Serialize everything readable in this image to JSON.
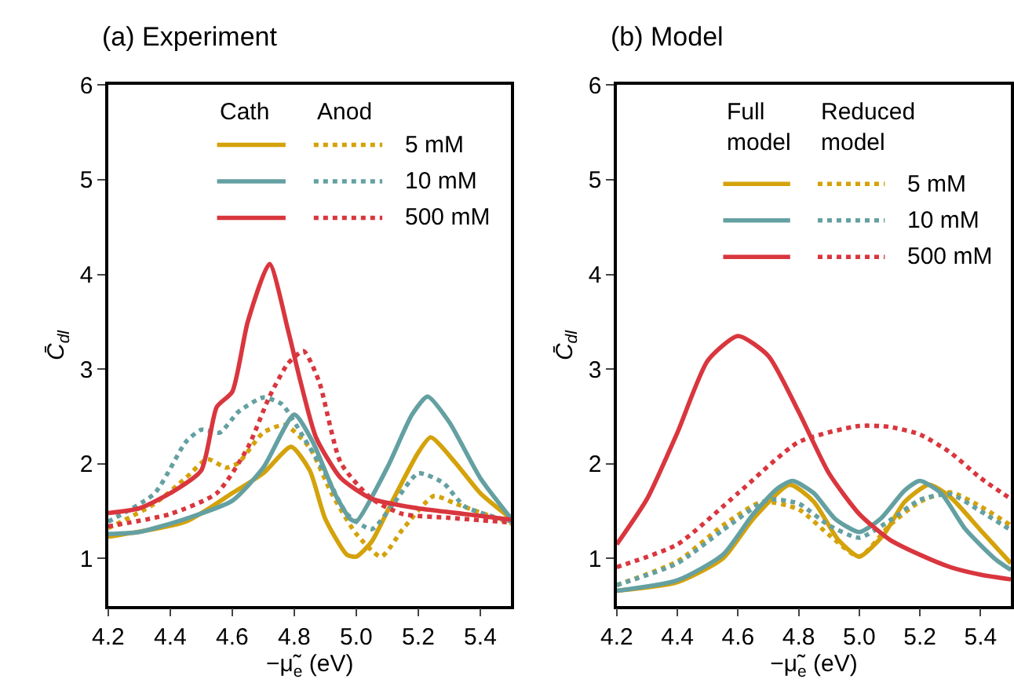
{
  "chart_data": [
    {
      "type": "line",
      "title": "(a) Experiment",
      "xlabel": "−μ̃$_{e}$ (eV)",
      "ylabel": "C̄$_{dl}$",
      "xlim": [
        4.2,
        5.5
      ],
      "xticks": [
        4.2,
        4.4,
        4.6,
        4.8,
        {
          "value": 5.0,
          "label": "5.0"
        },
        5.2,
        5.4
      ],
      "ylim": [
        0.5,
        6
      ],
      "yticks": [
        1,
        2,
        3,
        4,
        5,
        6
      ],
      "legend": "top right",
      "annotations": [
        "Cath",
        "Anod"
      ],
      "series": [
        {
          "color": "#d4a20a",
          "line_style": "solid",
          "x": [
            4.2,
            4.45,
            4.6,
            4.7,
            4.79,
            4.85,
            4.9,
            4.97,
            5.0,
            5.05,
            5.12,
            5.2,
            5.24,
            5.32,
            5.4,
            5.5
          ],
          "values": [
            1.23,
            1.39,
            1.69,
            1.9,
            2.18,
            1.93,
            1.42,
            1.04,
            1.02,
            1.18,
            1.63,
            2.12,
            2.28,
            2.01,
            1.69,
            1.42
          ]
        },
        {
          "name": "5 mM",
          "color": "#d4a20a",
          "line_style": "dotted",
          "x": [
            4.2,
            4.35,
            4.45,
            4.52,
            4.58,
            4.62,
            4.7,
            4.77,
            4.85,
            4.92,
            5.0,
            5.08,
            5.15,
            5.25,
            5.32,
            5.5
          ],
          "values": [
            1.32,
            1.58,
            1.85,
            2.05,
            1.96,
            2.01,
            2.33,
            2.41,
            2.17,
            1.69,
            1.26,
            1.02,
            1.31,
            1.66,
            1.58,
            1.37
          ]
        },
        {
          "color": "#64a0a2",
          "line_style": "solid",
          "x": [
            4.2,
            4.3,
            4.45,
            4.6,
            4.7,
            4.8,
            4.86,
            4.93,
            4.98,
            5.0,
            5.1,
            5.18,
            5.23,
            5.3,
            5.4,
            5.5
          ],
          "values": [
            1.26,
            1.28,
            1.42,
            1.61,
            1.96,
            2.52,
            2.23,
            1.69,
            1.42,
            1.39,
            1.96,
            2.52,
            2.71,
            2.44,
            1.85,
            1.42
          ]
        },
        {
          "name": "10 mM",
          "color": "#64a0a2",
          "line_style": "dotted",
          "x": [
            4.2,
            4.35,
            4.45,
            4.5,
            4.56,
            4.62,
            4.7,
            4.76,
            4.83,
            4.9,
            4.97,
            5.05,
            5.12,
            5.2,
            5.28,
            5.35,
            5.5
          ],
          "values": [
            1.39,
            1.69,
            2.23,
            2.36,
            2.33,
            2.55,
            2.7,
            2.63,
            2.28,
            1.9,
            1.47,
            1.31,
            1.58,
            1.9,
            1.8,
            1.55,
            1.39
          ]
        },
        {
          "color": "#d9363e",
          "line_style": "solid",
          "x": [
            4.2,
            4.3,
            4.4,
            4.5,
            4.55,
            4.6,
            4.65,
            4.72,
            4.78,
            4.82,
            4.87,
            4.95,
            5.05,
            5.2,
            5.35,
            5.5
          ],
          "values": [
            1.48,
            1.53,
            1.69,
            1.93,
            2.6,
            2.76,
            3.5,
            4.11,
            3.41,
            2.87,
            2.28,
            1.85,
            1.63,
            1.53,
            1.47,
            1.41
          ]
        },
        {
          "name": "500 mM",
          "color": "#d9363e",
          "line_style": "dotted",
          "x": [
            4.2,
            4.4,
            4.55,
            4.65,
            4.72,
            4.78,
            4.83,
            4.88,
            4.95,
            5.05,
            5.15,
            5.3,
            5.5
          ],
          "values": [
            1.34,
            1.47,
            1.69,
            2.17,
            2.71,
            3.06,
            3.19,
            2.87,
            2.01,
            1.63,
            1.47,
            1.43,
            1.38
          ]
        }
      ]
    },
    {
      "type": "line",
      "title": "(b) Model",
      "xlabel": "−μ̃$_{e}$ (eV)",
      "ylabel": "C̄$_{dl}$",
      "xlim": [
        4.2,
        5.5
      ],
      "xticks": [
        4.2,
        4.4,
        4.6,
        4.8,
        {
          "value": 5.0,
          "label": "5.0"
        },
        5.2,
        5.4
      ],
      "ylim": [
        0.5,
        6
      ],
      "yticks": [
        1,
        2,
        3,
        4,
        5,
        6
      ],
      "legend": "top right",
      "annotations": [
        "Full\nmodel",
        "Reduced\nmodel"
      ],
      "series": [
        {
          "color": "#d4a20a",
          "line_style": "solid",
          "x": [
            4.2,
            4.4,
            4.55,
            4.65,
            4.77,
            4.85,
            4.93,
            5.0,
            5.08,
            5.15,
            5.23,
            5.3,
            5.4,
            5.5
          ],
          "values": [
            0.66,
            0.75,
            1.0,
            1.42,
            1.78,
            1.6,
            1.2,
            1.02,
            1.25,
            1.6,
            1.78,
            1.65,
            1.3,
            0.95
          ]
        },
        {
          "name": "5 mM",
          "color": "#d4a20a",
          "line_style": "dotted",
          "x": [
            4.2,
            4.4,
            4.55,
            4.68,
            4.8,
            4.9,
            5.0,
            5.1,
            5.2,
            5.3,
            5.4,
            5.5
          ],
          "values": [
            0.72,
            0.97,
            1.35,
            1.6,
            1.52,
            1.25,
            1.02,
            1.35,
            1.6,
            1.7,
            1.55,
            1.35
          ]
        },
        {
          "color": "#64a0a2",
          "line_style": "solid",
          "x": [
            4.2,
            4.4,
            4.55,
            4.65,
            4.73,
            4.78,
            4.85,
            4.92,
            5.0,
            5.07,
            5.15,
            5.2,
            5.27,
            5.35,
            5.45,
            5.5
          ],
          "values": [
            0.66,
            0.77,
            1.04,
            1.47,
            1.74,
            1.82,
            1.69,
            1.42,
            1.28,
            1.42,
            1.72,
            1.82,
            1.69,
            1.31,
            0.99,
            0.88
          ]
        },
        {
          "name": "10 mM",
          "color": "#64a0a2",
          "line_style": "dotted",
          "x": [
            4.2,
            4.4,
            4.55,
            4.7,
            4.8,
            4.9,
            5.0,
            5.1,
            5.2,
            5.3,
            5.4,
            5.5
          ],
          "values": [
            0.72,
            0.95,
            1.3,
            1.62,
            1.58,
            1.35,
            1.22,
            1.4,
            1.62,
            1.68,
            1.5,
            1.3
          ]
        },
        {
          "color": "#d9363e",
          "line_style": "solid",
          "x": [
            4.2,
            4.3,
            4.4,
            4.5,
            4.6,
            4.7,
            4.8,
            4.9,
            5.0,
            5.1,
            5.2,
            5.3,
            5.4,
            5.5
          ],
          "values": [
            1.15,
            1.63,
            2.33,
            3.09,
            3.35,
            3.14,
            2.55,
            1.9,
            1.47,
            1.2,
            1.04,
            0.91,
            0.83,
            0.78
          ]
        },
        {
          "name": "500 mM",
          "color": "#d9363e",
          "line_style": "dotted",
          "x": [
            4.2,
            4.4,
            4.6,
            4.8,
            5.0,
            5.1,
            5.2,
            5.3,
            5.4,
            5.5
          ],
          "values": [
            0.91,
            1.15,
            1.69,
            2.23,
            2.4,
            2.39,
            2.31,
            2.12,
            1.85,
            1.63
          ]
        }
      ]
    }
  ]
}
